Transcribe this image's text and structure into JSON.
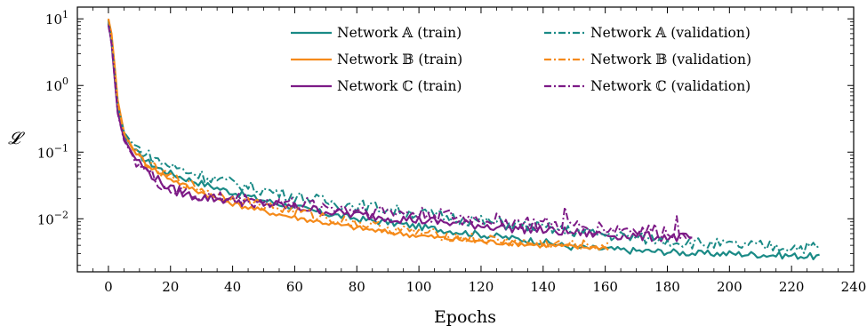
{
  "chart_data": {
    "type": "line",
    "xlabel": "Epochs",
    "ylabel": "𝓛",
    "yscale": "log",
    "xlim": [
      -10,
      240
    ],
    "ylim": [
      0.0016,
      15
    ],
    "xticks": [
      0,
      20,
      40,
      60,
      80,
      100,
      120,
      140,
      160,
      180,
      200,
      220,
      240
    ],
    "yticks": [
      {
        "value": 10,
        "base": "10",
        "exp": "1"
      },
      {
        "value": 1,
        "base": "10",
        "exp": "0"
      },
      {
        "value": 0.1,
        "base": "10",
        "exp": "−1"
      },
      {
        "value": 0.01,
        "base": "10",
        "exp": "−2"
      }
    ],
    "grid": false,
    "legend_position": "top-right",
    "series": [
      {
        "name": "Network 𝔸 (train)",
        "color": "#1a8a86",
        "dash": "solid",
        "points": [
          [
            0,
            9.5
          ],
          [
            1,
            5
          ],
          [
            2,
            1.5
          ],
          [
            3,
            0.45
          ],
          [
            5,
            0.18
          ],
          [
            8,
            0.11
          ],
          [
            12,
            0.075
          ],
          [
            16,
            0.058
          ],
          [
            20,
            0.048
          ],
          [
            25,
            0.04
          ],
          [
            30,
            0.034
          ],
          [
            35,
            0.029
          ],
          [
            40,
            0.025
          ],
          [
            50,
            0.019
          ],
          [
            60,
            0.015
          ],
          [
            70,
            0.012
          ],
          [
            80,
            0.01
          ],
          [
            90,
            0.0088
          ],
          [
            100,
            0.0076
          ],
          [
            110,
            0.0066
          ],
          [
            120,
            0.0058
          ],
          [
            130,
            0.0051
          ],
          [
            140,
            0.0045
          ],
          [
            150,
            0.0037
          ],
          [
            160,
            0.0035
          ],
          [
            170,
            0.0033
          ],
          [
            180,
            0.0032
          ],
          [
            190,
            0.003
          ],
          [
            200,
            0.003
          ],
          [
            210,
            0.0029
          ],
          [
            220,
            0.0028
          ],
          [
            229,
            0.0027
          ]
        ],
        "noise": 0.05
      },
      {
        "name": "Network 𝔹 (train)",
        "color": "#f58a1a",
        "dash": "solid",
        "points": [
          [
            0,
            10
          ],
          [
            1,
            6
          ],
          [
            2,
            2
          ],
          [
            3,
            0.6
          ],
          [
            5,
            0.2
          ],
          [
            8,
            0.11
          ],
          [
            12,
            0.07
          ],
          [
            16,
            0.05
          ],
          [
            20,
            0.04
          ],
          [
            25,
            0.031
          ],
          [
            30,
            0.025
          ],
          [
            35,
            0.02
          ],
          [
            40,
            0.017
          ],
          [
            50,
            0.013
          ],
          [
            60,
            0.0105
          ],
          [
            70,
            0.0087
          ],
          [
            80,
            0.0073
          ],
          [
            90,
            0.0063
          ],
          [
            100,
            0.0056
          ],
          [
            110,
            0.005
          ],
          [
            120,
            0.0046
          ],
          [
            130,
            0.0043
          ],
          [
            140,
            0.004
          ],
          [
            150,
            0.0038
          ],
          [
            161,
            0.0037
          ]
        ],
        "noise": 0.04
      },
      {
        "name": "Network ℂ (train)",
        "color": "#7d1b87",
        "dash": "solid",
        "points": [
          [
            0,
            8.5
          ],
          [
            1,
            4.5
          ],
          [
            2,
            1.3
          ],
          [
            3,
            0.4
          ],
          [
            5,
            0.16
          ],
          [
            8,
            0.09
          ],
          [
            12,
            0.055
          ],
          [
            16,
            0.038
          ],
          [
            20,
            0.028
          ],
          [
            25,
            0.023
          ],
          [
            30,
            0.021
          ],
          [
            35,
            0.02
          ],
          [
            40,
            0.019
          ],
          [
            50,
            0.017
          ],
          [
            60,
            0.015
          ],
          [
            70,
            0.013
          ],
          [
            80,
            0.0115
          ],
          [
            90,
            0.0105
          ],
          [
            100,
            0.0095
          ],
          [
            110,
            0.0087
          ],
          [
            120,
            0.008
          ],
          [
            130,
            0.0073
          ],
          [
            140,
            0.0067
          ],
          [
            150,
            0.0062
          ],
          [
            160,
            0.0058
          ],
          [
            170,
            0.0055
          ],
          [
            180,
            0.0053
          ],
          [
            188,
            0.0052
          ]
        ],
        "noise": 0.07
      },
      {
        "name": "Network 𝔸 (validation)",
        "color": "#1a8a86",
        "dash": "dashdot",
        "points": [
          [
            0,
            9
          ],
          [
            1,
            4.8
          ],
          [
            2,
            1.6
          ],
          [
            3,
            0.5
          ],
          [
            5,
            0.2
          ],
          [
            8,
            0.13
          ],
          [
            12,
            0.095
          ],
          [
            16,
            0.075
          ],
          [
            20,
            0.062
          ],
          [
            25,
            0.052
          ],
          [
            30,
            0.045
          ],
          [
            35,
            0.039
          ],
          [
            40,
            0.034
          ],
          [
            50,
            0.027
          ],
          [
            60,
            0.022
          ],
          [
            70,
            0.018
          ],
          [
            80,
            0.016
          ],
          [
            90,
            0.014
          ],
          [
            100,
            0.012
          ],
          [
            110,
            0.0105
          ],
          [
            120,
            0.0092
          ],
          [
            130,
            0.0082
          ],
          [
            140,
            0.0073
          ],
          [
            150,
            0.0065
          ],
          [
            160,
            0.0058
          ],
          [
            170,
            0.0052
          ],
          [
            180,
            0.0047
          ],
          [
            190,
            0.0043
          ],
          [
            200,
            0.004
          ],
          [
            210,
            0.0039
          ],
          [
            220,
            0.0038
          ],
          [
            229,
            0.0037
          ]
        ],
        "noise": 0.09
      },
      {
        "name": "Network 𝔹 (validation)",
        "color": "#f58a1a",
        "dash": "dashdot",
        "points": [
          [
            0,
            10
          ],
          [
            1,
            5.5
          ],
          [
            2,
            1.9
          ],
          [
            3,
            0.55
          ],
          [
            5,
            0.19
          ],
          [
            8,
            0.105
          ],
          [
            12,
            0.07
          ],
          [
            16,
            0.052
          ],
          [
            20,
            0.042
          ],
          [
            25,
            0.034
          ],
          [
            30,
            0.028
          ],
          [
            35,
            0.023
          ],
          [
            40,
            0.02
          ],
          [
            50,
            0.016
          ],
          [
            60,
            0.013
          ],
          [
            70,
            0.0105
          ],
          [
            80,
            0.0087
          ],
          [
            90,
            0.0072
          ],
          [
            100,
            0.0062
          ],
          [
            110,
            0.0055
          ],
          [
            120,
            0.0049
          ],
          [
            130,
            0.0045
          ],
          [
            140,
            0.0042
          ],
          [
            150,
            0.004
          ],
          [
            161,
            0.0039
          ]
        ],
        "noise": 0.08
      },
      {
        "name": "Network ℂ (validation)",
        "color": "#7d1b87",
        "dash": "dashdot",
        "points": [
          [
            0,
            8
          ],
          [
            1,
            4.2
          ],
          [
            2,
            1.3
          ],
          [
            3,
            0.38
          ],
          [
            5,
            0.15
          ],
          [
            8,
            0.085
          ],
          [
            12,
            0.052
          ],
          [
            16,
            0.036
          ],
          [
            20,
            0.027
          ],
          [
            25,
            0.024
          ],
          [
            30,
            0.022
          ],
          [
            35,
            0.021
          ],
          [
            40,
            0.02
          ],
          [
            50,
            0.018
          ],
          [
            60,
            0.017
          ],
          [
            70,
            0.015
          ],
          [
            80,
            0.014
          ],
          [
            90,
            0.0128
          ],
          [
            100,
            0.0118
          ],
          [
            110,
            0.0108
          ],
          [
            120,
            0.0098
          ],
          [
            130,
            0.009
          ],
          [
            140,
            0.0083
          ],
          [
            150,
            0.0077
          ],
          [
            160,
            0.0072
          ],
          [
            170,
            0.0068
          ],
          [
            180,
            0.0064
          ],
          [
            188,
            0.0062
          ]
        ],
        "noise": 0.11,
        "spikes": [
          [
            107,
            0.014
          ],
          [
            147,
            0.015
          ],
          [
            183,
            0.011
          ]
        ]
      }
    ]
  }
}
